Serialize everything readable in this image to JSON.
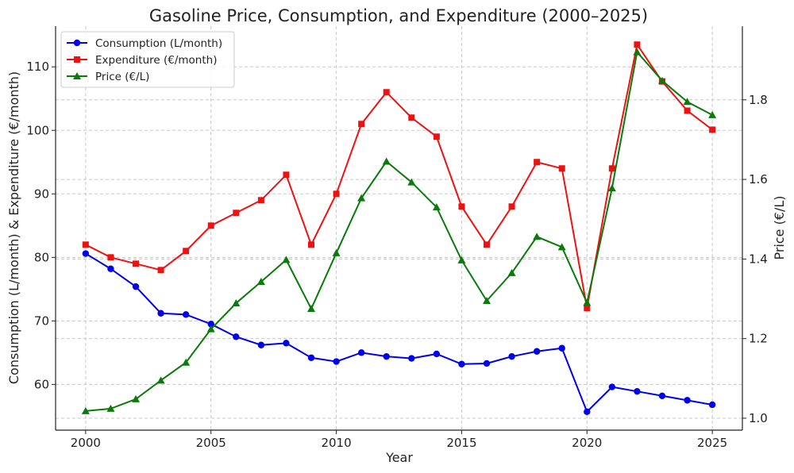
{
  "chart_data": {
    "type": "line",
    "title": "Gasoline Price, Consumption, and Expenditure (2000–2025)",
    "xlabel": "Year",
    "ylabel": "Consumption (L/month) & Expenditure (€/month)",
    "y2label": "Price (€/L)",
    "x": [
      2000,
      2001,
      2002,
      2003,
      2004,
      2005,
      2006,
      2007,
      2008,
      2009,
      2010,
      2011,
      2012,
      2013,
      2014,
      2015,
      2016,
      2017,
      2018,
      2019,
      2020,
      2021,
      2022,
      2023,
      2024,
      2025
    ],
    "xticks": [
      "2000",
      "2005",
      "2010",
      "2015",
      "2020",
      "2025"
    ],
    "xlim": [
      1998.8,
      2026.2
    ],
    "ylim": [
      52.8,
      116.4
    ],
    "yticks": [
      "60",
      "70",
      "80",
      "90",
      "100",
      "110"
    ],
    "y2lim": [
      0.97,
      1.985
    ],
    "y2ticks": [
      "1.0",
      "1.2",
      "1.4",
      "1.6",
      "1.8"
    ],
    "grid": true,
    "legend_position": "top-left",
    "series": [
      {
        "name": "Consumption (L/month)",
        "axis": "left",
        "color": "#0000ee",
        "marker": "circle",
        "values": [
          80.6,
          78.2,
          75.4,
          71.2,
          71.0,
          69.5,
          67.5,
          66.2,
          66.5,
          64.2,
          63.6,
          65.0,
          64.4,
          64.1,
          64.8,
          63.2,
          63.3,
          64.4,
          65.2,
          65.7,
          55.7,
          59.6,
          58.9,
          58.2,
          57.5,
          56.8
        ]
      },
      {
        "name": "Expenditure (€/month)",
        "axis": "left",
        "color": "#ee1111",
        "marker": "square",
        "values": [
          82.0,
          80.0,
          79.0,
          78.0,
          81.0,
          85.0,
          87.0,
          89.0,
          93.0,
          82.0,
          90.0,
          101.0,
          106.0,
          102.0,
          99.0,
          88.0,
          82.0,
          88.0,
          95.0,
          94.0,
          72.0,
          94.0,
          113.5,
          107.7,
          103.1,
          100.1
        ]
      },
      {
        "name": "Price (€/L)",
        "axis": "right",
        "color": "#0a7a0a",
        "marker": "triangle",
        "values": [
          1.018,
          1.024,
          1.048,
          1.095,
          1.14,
          1.224,
          1.289,
          1.343,
          1.398,
          1.275,
          1.415,
          1.553,
          1.645,
          1.593,
          1.53,
          1.397,
          1.295,
          1.365,
          1.456,
          1.43,
          1.29,
          1.578,
          1.92,
          1.848,
          1.795,
          1.762
        ]
      }
    ]
  }
}
